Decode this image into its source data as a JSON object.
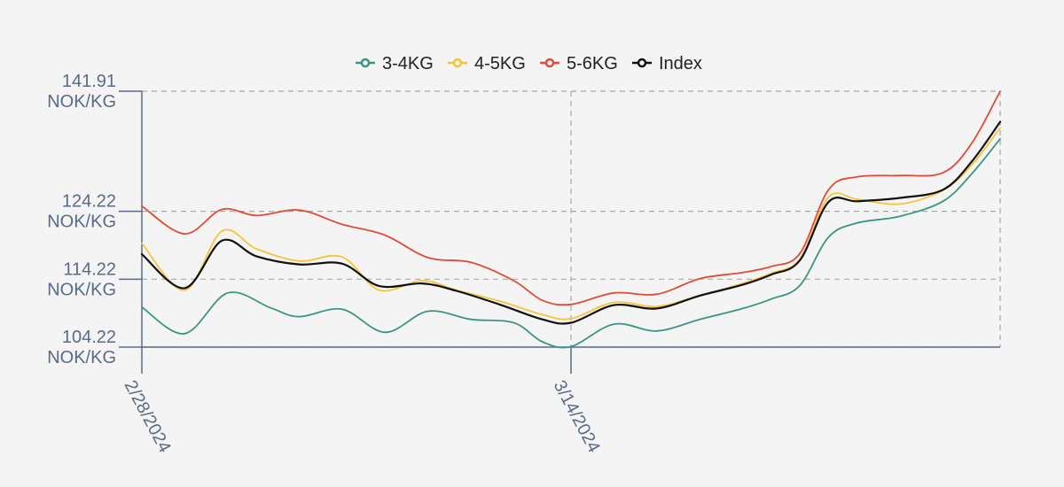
{
  "chart_data": {
    "type": "line",
    "x": [
      "2/28/2024",
      "3/14/2024"
    ],
    "x_range": [
      "2/28/2024",
      "3/29/2024"
    ],
    "y_unit": "NOK/KG",
    "ylim": [
      104.22,
      141.91
    ],
    "yticks": [
      {
        "value": 141.91,
        "line1": "141.91",
        "line2": "NOK/KG"
      },
      {
        "value": 124.22,
        "line1": "124.22",
        "line2": "NOK/KG"
      },
      {
        "value": 114.22,
        "line1": "114.22",
        "line2": "NOK/KG"
      },
      {
        "value": 104.22,
        "line1": "104.22",
        "line2": "NOK/KG"
      }
    ],
    "xticks": [
      {
        "day": 0,
        "label": "2/28/2024"
      },
      {
        "day": 15,
        "label": "3/14/2024"
      }
    ],
    "grid": true,
    "legend_position": "top-center",
    "series": [
      {
        "name": "3-4KG",
        "color": "#3a9585",
        "points": [
          [
            0,
            110.1
          ],
          [
            1.5,
            106.2
          ],
          [
            3,
            112.2
          ],
          [
            4.5,
            110.0
          ],
          [
            5.5,
            108.7
          ],
          [
            7,
            109.8
          ],
          [
            8.5,
            106.4
          ],
          [
            10,
            109.5
          ],
          [
            11.5,
            108.3
          ],
          [
            13,
            107.8
          ],
          [
            14,
            105.0
          ],
          [
            15,
            104.3
          ],
          [
            16.5,
            107.6
          ],
          [
            18,
            106.6
          ],
          [
            19.5,
            108.3
          ],
          [
            21,
            109.9
          ],
          [
            22,
            111.3
          ],
          [
            23,
            113.3
          ],
          [
            24,
            120.4
          ],
          [
            25,
            122.5
          ],
          [
            26.5,
            123.5
          ],
          [
            28,
            125.7
          ],
          [
            29,
            129.7
          ],
          [
            30,
            134.9
          ]
        ]
      },
      {
        "name": "4-5KG",
        "color": "#f6c33b",
        "points": [
          [
            0,
            119.5
          ],
          [
            1.5,
            112.6
          ],
          [
            2.8,
            121.3
          ],
          [
            4,
            118.7
          ],
          [
            5.5,
            116.9
          ],
          [
            7,
            117.5
          ],
          [
            8.3,
            112.6
          ],
          [
            9.8,
            114.0
          ],
          [
            11,
            112.6
          ],
          [
            12.5,
            111.0
          ],
          [
            14,
            109.0
          ],
          [
            15,
            108.4
          ],
          [
            16.5,
            110.8
          ],
          [
            18,
            110.2
          ],
          [
            19.5,
            111.8
          ],
          [
            21,
            113.6
          ],
          [
            22,
            115.1
          ],
          [
            23,
            117.2
          ],
          [
            24,
            126.3
          ],
          [
            25,
            126.0
          ],
          [
            26.5,
            125.3
          ],
          [
            28,
            127.3
          ],
          [
            29,
            131.0
          ],
          [
            30,
            136.5
          ]
        ]
      },
      {
        "name": "5-6KG",
        "color": "#e04c35",
        "points": [
          [
            0,
            125.0
          ],
          [
            1.5,
            120.9
          ],
          [
            2.8,
            124.5
          ],
          [
            4,
            123.6
          ],
          [
            5.5,
            124.4
          ],
          [
            7,
            122.3
          ],
          [
            8.5,
            120.7
          ],
          [
            10,
            117.4
          ],
          [
            11.5,
            116.7
          ],
          [
            13,
            114.0
          ],
          [
            14,
            111.1
          ],
          [
            15,
            110.5
          ],
          [
            16.5,
            112.2
          ],
          [
            18,
            112.0
          ],
          [
            19.5,
            114.3
          ],
          [
            21,
            115.2
          ],
          [
            22,
            116.1
          ],
          [
            23,
            118.0
          ],
          [
            24,
            127.4
          ],
          [
            25,
            129.3
          ],
          [
            26.5,
            129.5
          ],
          [
            28,
            129.9
          ],
          [
            29,
            134.2
          ],
          [
            30,
            141.91
          ]
        ]
      },
      {
        "name": "Index",
        "color": "#111111",
        "points": [
          [
            0,
            117.9
          ],
          [
            1.5,
            112.9
          ],
          [
            2.8,
            119.9
          ],
          [
            4,
            117.6
          ],
          [
            5.5,
            116.4
          ],
          [
            7,
            116.5
          ],
          [
            8.3,
            113.2
          ],
          [
            9.8,
            113.6
          ],
          [
            11,
            112.5
          ],
          [
            12.5,
            110.5
          ],
          [
            14,
            108.3
          ],
          [
            15,
            107.8
          ],
          [
            16.5,
            110.4
          ],
          [
            18,
            109.9
          ],
          [
            19.5,
            111.8
          ],
          [
            21,
            113.4
          ],
          [
            22,
            114.9
          ],
          [
            23,
            117.0
          ],
          [
            24,
            125.6
          ],
          [
            25,
            125.7
          ],
          [
            26.5,
            126.2
          ],
          [
            28,
            127.4
          ],
          [
            29,
            131.5
          ],
          [
            30,
            137.4
          ]
        ]
      }
    ]
  }
}
